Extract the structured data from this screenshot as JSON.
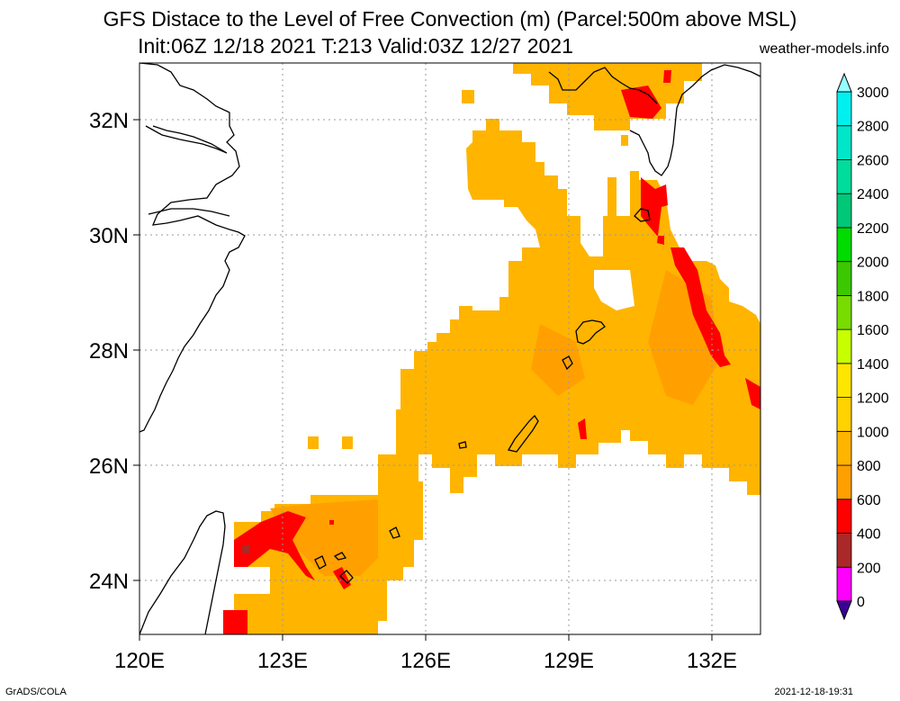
{
  "header": {
    "title_line1": "GFS Distace to the Level of Free Convection (m) (Parcel:500m above MSL)",
    "title_line2": "Init:06Z 12/18 2021 T:213 Valid:03Z 12/27 2021",
    "site": "weather-models.info"
  },
  "footer": {
    "left": "GrADS/COLA",
    "right": "2021-12-18-19:31"
  },
  "map": {
    "lon_range": [
      120,
      133
    ],
    "lat_range": [
      23,
      33
    ],
    "lon_ticks": [
      120,
      123,
      126,
      129,
      132
    ],
    "lat_ticks": [
      24,
      26,
      28,
      30,
      32
    ],
    "lon_labels": [
      "120E",
      "123E",
      "126E",
      "129E",
      "132E"
    ],
    "lat_labels": [
      "24N",
      "26N",
      "28N",
      "30N",
      "32N"
    ],
    "grid": "dotted"
  },
  "colorbar": {
    "levels": [
      "0",
      "200",
      "400",
      "600",
      "800",
      "1000",
      "1200",
      "1400",
      "1600",
      "1800",
      "2000",
      "2200",
      "2400",
      "2600",
      "2800",
      "3000"
    ],
    "colors": [
      "#3c0096",
      "#ff00ff",
      "#aa2828",
      "#ff0000",
      "#ffa000",
      "#ffb400",
      "#ffd200",
      "#ffe600",
      "#c8ff00",
      "#78dc00",
      "#3cc800",
      "#00dc00",
      "#00c878",
      "#00dc9b",
      "#00e6c8",
      "#00f0f0"
    ],
    "under_color": "#3c0096",
    "over_color": "#96ffff"
  }
}
